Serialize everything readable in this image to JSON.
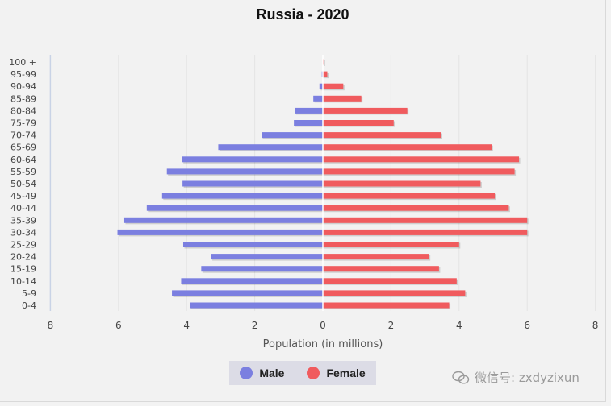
{
  "title": "Russia - 2020",
  "chart_data": {
    "type": "bar",
    "orientation": "horizontal",
    "title": "Russia - 2020",
    "xlabel": "Population (in millions)",
    "ylabel": "",
    "xlim": [
      -8,
      8
    ],
    "xticks": [
      "8",
      "6",
      "4",
      "2",
      "0",
      "2",
      "4",
      "6",
      "8"
    ],
    "categories": [
      "100 +",
      "95-99",
      "90-94",
      "85-89",
      "80-84",
      "75-79",
      "70-74",
      "65-69",
      "60-64",
      "55-59",
      "50-54",
      "45-49",
      "40-44",
      "35-39",
      "30-34",
      "25-29",
      "20-24",
      "15-19",
      "10-14",
      "5-9",
      "0-4"
    ],
    "series": [
      {
        "name": "Male",
        "color": "#7b7fe0",
        "values": [
          0.01,
          0.03,
          0.1,
          0.28,
          0.82,
          0.85,
          1.8,
          3.07,
          4.13,
          4.58,
          4.12,
          4.72,
          5.17,
          5.83,
          6.03,
          4.1,
          3.28,
          3.57,
          4.16,
          4.43,
          3.91
        ]
      },
      {
        "name": "Female",
        "color": "#f05b5e",
        "values": [
          0.03,
          0.13,
          0.6,
          1.13,
          2.48,
          2.08,
          3.46,
          4.96,
          5.76,
          5.63,
          4.63,
          5.05,
          5.46,
          6.0,
          6.0,
          4.0,
          3.12,
          3.41,
          3.93,
          4.18,
          3.71
        ]
      }
    ],
    "grid": true,
    "legend_position": "bottom-center"
  },
  "legend": [
    {
      "label": "Male",
      "color": "#7b7fe0"
    },
    {
      "label": "Female",
      "color": "#f05b5e"
    }
  ],
  "watermark": "微信号: zxdyzixun"
}
